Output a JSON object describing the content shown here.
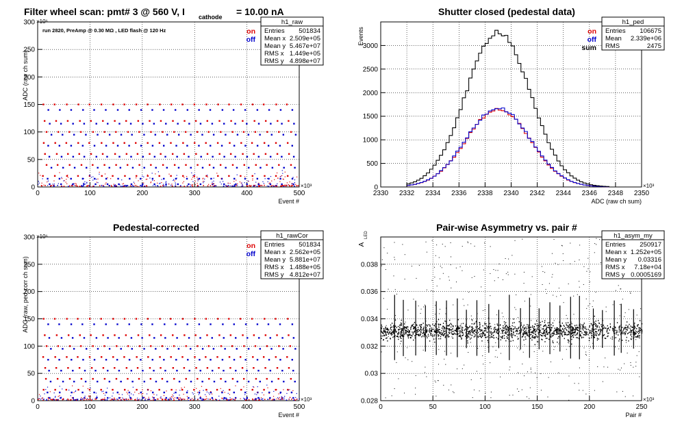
{
  "panels": [
    {
      "title": "Filter wheel scan: pmt#   3 @   560 V, I",
      "title_sub": "cathode",
      "title_tail": "= 10.00 nA",
      "annotation": "run 2820, PreAmp @ 0.30 MΩ , LED flash @  120 Hz",
      "legend": [
        {
          "label": "on",
          "color": "#dd0000"
        },
        {
          "label": "off",
          "color": "#0000cc"
        }
      ],
      "statbox": {
        "name": "h1_raw",
        "rows": [
          {
            "k": "Entries",
            "v": "501834"
          },
          {
            "k": "Mean x",
            "v": "2.509e+05"
          },
          {
            "k": "Mean y",
            "v": "5.467e+07"
          },
          {
            "k": "RMS x",
            "v": "1.449e+05"
          },
          {
            "k": "RMS y",
            "v": "4.898e+07"
          }
        ]
      },
      "xlabel": "Event #",
      "ylabel": "ADC (raw ch sum)",
      "x_exp": "×10³",
      "y_exp": "×10⁶"
    },
    {
      "title": "Shutter closed (pedestal data)",
      "legend": [
        {
          "label": "on",
          "color": "#dd0000"
        },
        {
          "label": "off",
          "color": "#0000cc"
        },
        {
          "label": "sum",
          "color": "#000000"
        }
      ],
      "statbox": {
        "name": "h1_ped",
        "rows": [
          {
            "k": "Entries",
            "v": "106675"
          },
          {
            "k": "Mean",
            "v": "2.339e+06"
          },
          {
            "k": "RMS",
            "v": "2475"
          }
        ]
      },
      "xlabel": "ADC (raw ch sum)",
      "ylabel": "Events",
      "x_exp": "×10³"
    },
    {
      "title": "Pedestal-corrected",
      "legend": [
        {
          "label": "on",
          "color": "#dd0000"
        },
        {
          "label": "off",
          "color": "#0000cc"
        }
      ],
      "statbox": {
        "name": "h1_rawCor",
        "rows": [
          {
            "k": "Entries",
            "v": "501834"
          },
          {
            "k": "Mean x",
            "v": "2.562e+05"
          },
          {
            "k": "Mean y",
            "v": "5.881e+07"
          },
          {
            "k": "RMS x",
            "v": "1.488e+05"
          },
          {
            "k": "RMS y",
            "v": "4.812e+07"
          }
        ]
      },
      "xlabel": "Event #",
      "ylabel": "ADC (raw, ped-corr ch sum)",
      "x_exp": "×10³",
      "y_exp": "×10⁶"
    },
    {
      "title": "Pair-wise Asymmetry vs. pair #",
      "statbox": {
        "name": "h1_asym_my",
        "rows": [
          {
            "k": "Entries",
            "v": "250917"
          },
          {
            "k": "Mean x",
            "v": "1.252e+05"
          },
          {
            "k": "Mean y",
            "v": "0.03316"
          },
          {
            "k": "RMS x",
            "v": "7.18e+04"
          },
          {
            "k": "RMS y",
            "v": "0.0005169"
          }
        ]
      },
      "xlabel": "Pair #",
      "ylabel": "A",
      "ylabel_sub": "LED",
      "x_exp": "×10³"
    }
  ],
  "chart_data": [
    {
      "type": "scatter",
      "xlim": [
        0,
        500
      ],
      "ylim": [
        0,
        300
      ],
      "xticks": [
        "0",
        "100",
        "200",
        "300",
        "400",
        "500"
      ],
      "yticks": [
        "0",
        "50",
        "100",
        "150",
        "200",
        "250",
        "300"
      ],
      "grid": true,
      "levels": [
        150,
        140,
        120,
        115,
        100,
        95,
        80,
        75,
        60,
        55,
        40,
        35,
        20,
        15,
        5
      ],
      "series": [
        {
          "name": "on",
          "color": "#dd0000",
          "levels": [
            150,
            120,
            100,
            80,
            60,
            40,
            20
          ]
        },
        {
          "name": "off",
          "color": "#0000cc",
          "levels": [
            140,
            115,
            95,
            75,
            55,
            35,
            15,
            5
          ]
        }
      ]
    },
    {
      "type": "line",
      "xlim": [
        2330,
        2350
      ],
      "ylim": [
        0,
        3500
      ],
      "xticks": [
        "2330",
        "2332",
        "2334",
        "2336",
        "2338",
        "2340",
        "2342",
        "2344",
        "2346",
        "2348",
        "2350"
      ],
      "yticks": [
        "0",
        "500",
        "1000",
        "1500",
        "2000",
        "2500",
        "3000"
      ],
      "grid": true,
      "bin_width": 0.25,
      "series": [
        {
          "name": "on",
          "color": "#dd0000",
          "mean": 2339.0,
          "sigma": 2.45,
          "peak": 1650
        },
        {
          "name": "off",
          "color": "#0000cc",
          "mean": 2339.0,
          "sigma": 2.45,
          "peak": 1680
        },
        {
          "name": "sum",
          "color": "#000000",
          "mean": 2339.0,
          "sigma": 2.45,
          "peak": 3300
        }
      ]
    },
    {
      "type": "scatter",
      "xlim": [
        0,
        500
      ],
      "ylim": [
        0,
        300
      ],
      "xticks": [
        "0",
        "100",
        "200",
        "300",
        "400",
        "500"
      ],
      "yticks": [
        "0",
        "50",
        "100",
        "150",
        "200",
        "250",
        "300"
      ],
      "grid": true,
      "series": [
        {
          "name": "on",
          "color": "#dd0000",
          "levels": [
            150,
            120,
            100,
            80,
            60,
            40,
            20
          ]
        },
        {
          "name": "off",
          "color": "#0000cc",
          "levels": [
            140,
            115,
            95,
            75,
            55,
            35,
            15,
            5
          ]
        }
      ]
    },
    {
      "type": "scatter",
      "xlim": [
        0,
        250
      ],
      "ylim": [
        0.028,
        0.04
      ],
      "xticks": [
        "0",
        "50",
        "100",
        "150",
        "200",
        "250"
      ],
      "yticks": [
        "0.028",
        "0.03",
        "0.032",
        "0.034",
        "0.036",
        "0.038"
      ],
      "grid": true,
      "band_center": 0.0331,
      "band_halfwidth": 0.0006,
      "series": [
        {
          "name": "h1_asym_my",
          "color": "#000000"
        }
      ]
    }
  ]
}
